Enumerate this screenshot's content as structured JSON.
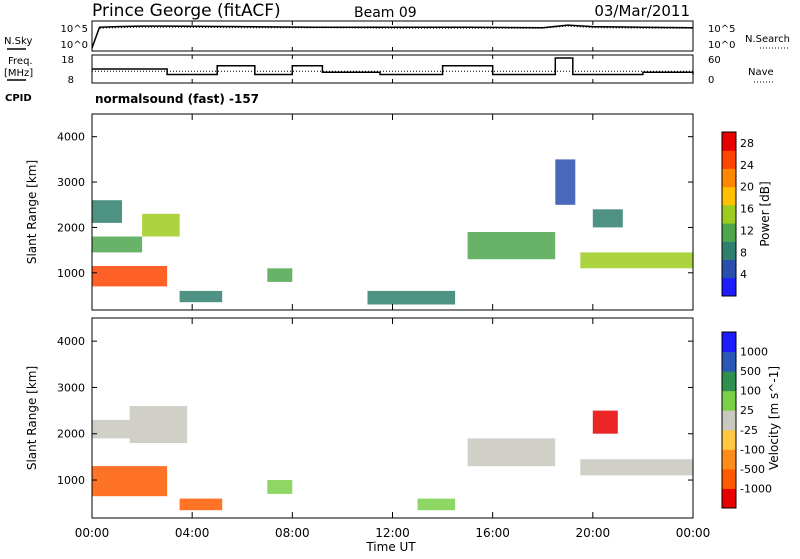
{
  "header": {
    "title": "Prince George (fitACF)",
    "beam": "Beam 09",
    "date": "03/Mar/2011"
  },
  "noise_panel": {
    "left_label": "N.Sky",
    "right_label": "N.Search",
    "left_ticks": [
      "10^5",
      "10^0"
    ],
    "right_ticks": [
      "10^5",
      "10^0"
    ]
  },
  "freq_panel": {
    "left_label_1": "Freq.",
    "left_label_2": "[MHz]",
    "right_label": "Nave",
    "left_ticks": [
      "18",
      "8"
    ],
    "right_ticks": [
      "60",
      "0"
    ]
  },
  "cpid": {
    "label": "CPID",
    "value": "normalsound (fast) -157"
  },
  "time_axis": {
    "label": "Time UT",
    "ticks": [
      "00:00",
      "04:00",
      "08:00",
      "12:00",
      "16:00",
      "20:00",
      "00:00"
    ]
  },
  "colors": {
    "power_scale": [
      "#1c1cff",
      "#2a4fae",
      "#2f7f6e",
      "#4fa64f",
      "#9ccc1e",
      "#ffc000",
      "#ff8800",
      "#ff4400",
      "#e60000"
    ],
    "velocity_scale": [
      "#e60000",
      "#ff5a00",
      "#ff8c1a",
      "#ffc840",
      "#c8c8c0",
      "#7bd04a",
      "#2f8f4f",
      "#2a58b8",
      "#1c1cff"
    ]
  },
  "chart_data": [
    {
      "type": "line",
      "name": "noise",
      "ylabel": "N.Sky",
      "x": [
        0.0,
        0.3,
        1.0,
        2.0,
        3.0,
        6.0,
        9.0,
        12.0,
        15.0,
        18.0,
        19.0,
        20.0,
        22.0,
        24.0
      ],
      "series": [
        {
          "name": "N.Sky",
          "values": [
            0.2,
            4.2,
            4.3,
            4.4,
            4.4,
            4.3,
            4.2,
            4.2,
            4.2,
            4.1,
            4.6,
            4.3,
            4.2,
            4.1
          ]
        },
        {
          "name": "N.Search",
          "values": [
            0.3,
            4.0,
            4.1,
            4.2,
            4.2,
            4.1,
            4.1,
            4.0,
            4.0,
            4.0,
            4.4,
            4.1,
            4.0,
            4.0
          ]
        }
      ]
    },
    {
      "type": "line",
      "name": "frequency",
      "ylim": [
        8,
        18
      ],
      "x": [
        0.0,
        1.0,
        2.0,
        3.0,
        5.0,
        6.5,
        8.0,
        9.2,
        11.5,
        14.0,
        16.0,
        18.5,
        19.2,
        20.5,
        22.0,
        24.0
      ],
      "series": [
        {
          "name": "Freq",
          "values": [
            13,
            13,
            13,
            10.5,
            14.5,
            10.5,
            14.5,
            11.5,
            10.5,
            14.5,
            10.5,
            18,
            10.5,
            10.5,
            11.5,
            10.5
          ]
        },
        {
          "name": "Nave",
          "values": [
            24,
            24,
            24,
            24,
            24,
            24,
            24,
            24,
            24,
            24,
            24,
            24,
            24,
            24,
            24,
            24
          ]
        }
      ]
    },
    {
      "type": "heatmap",
      "name": "power",
      "ylabel": "Slant Range [km]",
      "xlabel": "Time UT",
      "xlim": [
        0,
        24
      ],
      "ylim": [
        180,
        4500
      ],
      "yticks": [
        1000,
        2000,
        3000,
        4000
      ],
      "colorbar_label": "Power [dB]",
      "colorbar_ticks": [
        4,
        8,
        12,
        16,
        20,
        24,
        28
      ],
      "colorbar_range": [
        0,
        30
      ],
      "regions": [
        {
          "t0": 0.0,
          "t1": 3.0,
          "r0": 700,
          "r1": 1150,
          "v": 26
        },
        {
          "t0": 0.0,
          "t1": 2.0,
          "r0": 1450,
          "r1": 1800,
          "v": 10
        },
        {
          "t0": 0.0,
          "t1": 1.2,
          "r0": 2100,
          "r1": 2600,
          "v": 7
        },
        {
          "t0": 2.0,
          "t1": 3.5,
          "r0": 1800,
          "r1": 2300,
          "v": 15
        },
        {
          "t0": 3.5,
          "t1": 5.2,
          "r0": 350,
          "r1": 600,
          "v": 9
        },
        {
          "t0": 7.0,
          "t1": 8.0,
          "r0": 800,
          "r1": 1100,
          "v": 10
        },
        {
          "t0": 11.0,
          "t1": 14.5,
          "r0": 300,
          "r1": 600,
          "v": 8
        },
        {
          "t0": 15.0,
          "t1": 18.5,
          "r0": 1300,
          "r1": 1900,
          "v": 10
        },
        {
          "t0": 19.5,
          "t1": 24.0,
          "r0": 1100,
          "r1": 1450,
          "v": 14
        },
        {
          "t0": 20.0,
          "t1": 21.2,
          "r0": 2000,
          "r1": 2400,
          "v": 9
        },
        {
          "t0": 18.5,
          "t1": 19.3,
          "r0": 2500,
          "r1": 3500,
          "v": 6
        }
      ]
    },
    {
      "type": "heatmap",
      "name": "velocity",
      "ylabel": "Slant Range [km]",
      "xlabel": "Time UT",
      "xlim": [
        0,
        24
      ],
      "ylim": [
        180,
        4500
      ],
      "yticks": [
        1000,
        2000,
        3000,
        4000
      ],
      "colorbar_label": "Velocity [m s^-1]",
      "colorbar_ticks": [
        "1000",
        "500",
        "100",
        "25",
        "-25",
        "-100",
        "-500",
        "-1000"
      ],
      "regions": [
        {
          "t0": 0.0,
          "t1": 3.0,
          "r0": 650,
          "r1": 1300,
          "v": -300
        },
        {
          "t0": 0.0,
          "t1": 1.5,
          "r0": 1900,
          "r1": 2300,
          "v": 0
        },
        {
          "t0": 1.5,
          "t1": 3.8,
          "r0": 1800,
          "r1": 2600,
          "v": 0
        },
        {
          "t0": 3.5,
          "t1": 5.2,
          "r0": 350,
          "r1": 600,
          "v": -150
        },
        {
          "t0": 7.0,
          "t1": 8.0,
          "r0": 700,
          "r1": 1000,
          "v": 80
        },
        {
          "t0": 13.0,
          "t1": 14.5,
          "r0": 350,
          "r1": 600,
          "v": 60
        },
        {
          "t0": 15.0,
          "t1": 18.5,
          "r0": 1300,
          "r1": 1900,
          "v": 0
        },
        {
          "t0": 19.5,
          "t1": 24.0,
          "r0": 1100,
          "r1": 1450,
          "v": 0
        },
        {
          "t0": 20.0,
          "t1": 21.0,
          "r0": 2000,
          "r1": 2500,
          "v": -700
        }
      ]
    }
  ]
}
